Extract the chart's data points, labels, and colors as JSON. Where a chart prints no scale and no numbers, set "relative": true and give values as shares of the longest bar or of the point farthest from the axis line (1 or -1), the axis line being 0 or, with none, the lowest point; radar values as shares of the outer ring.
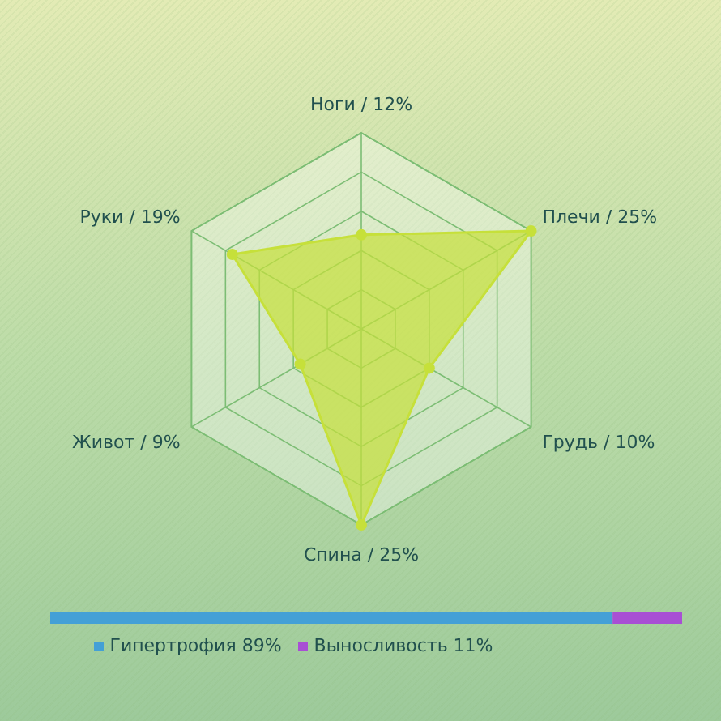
{
  "chart_data": [
    {
      "type": "radar",
      "categories": [
        "Ноги / 12%",
        "Плечи / 25%",
        "Грудь / 10%",
        "Спина / 25%",
        "Живот / 9%",
        "Руки / 19%"
      ],
      "series": [
        {
          "color": "#c6e03a",
          "values": [
            0.48,
            1,
            0.4,
            1,
            0.36,
            0.76
          ]
        }
      ],
      "relative": true,
      "grid": true,
      "marker": "circle"
    },
    {
      "type": "bar",
      "orientation": "horizontal",
      "stacked": true,
      "relative": true,
      "categories": [
        null
      ],
      "series": [
        {
          "name": "Гипертрофия 89%",
          "color": "#44a0d6",
          "values": [
            0.89
          ]
        },
        {
          "name": "Выносливость 11%",
          "color": "#a84fd4",
          "values": [
            0.11
          ]
        }
      ],
      "tick_labels": false,
      "legend": "bottom"
    }
  ]
}
